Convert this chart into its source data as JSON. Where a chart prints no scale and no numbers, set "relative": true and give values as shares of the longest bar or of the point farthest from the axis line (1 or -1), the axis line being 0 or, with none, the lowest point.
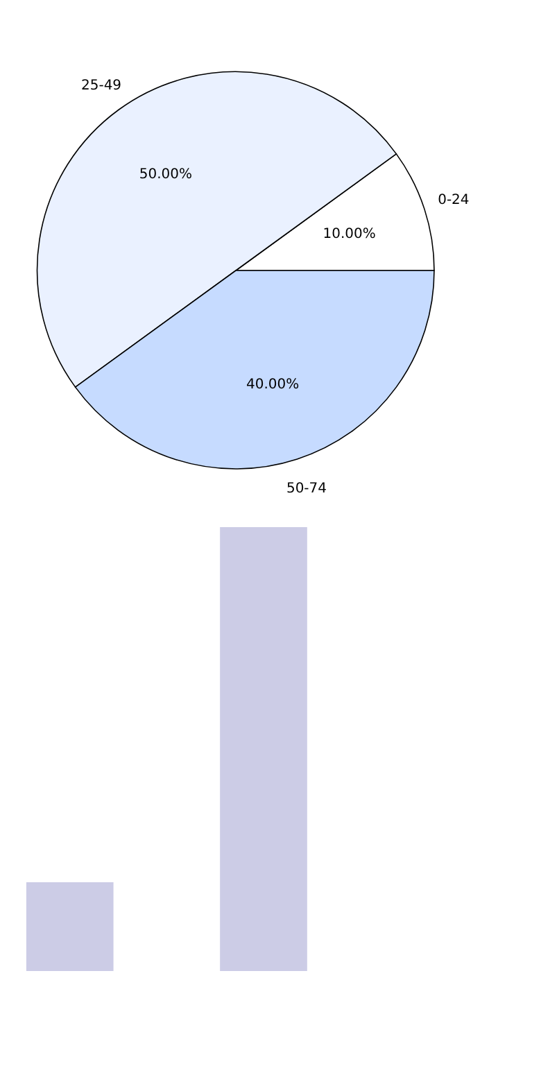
{
  "chart_data": [
    {
      "type": "pie",
      "categories": [
        "0-24",
        "25-49",
        "50-74"
      ],
      "values": [
        10,
        50,
        40
      ],
      "colors": [
        "#ffffff",
        "#eaf1ff",
        "#c6dbff"
      ],
      "value_labels": [
        "10.00%",
        "50.00%",
        "40.00%"
      ],
      "legend": false
    },
    {
      "type": "bar",
      "categories": [
        null,
        null
      ],
      "values": [
        0.2,
        1
      ],
      "color": "#cccce6",
      "relative": true
    }
  ]
}
